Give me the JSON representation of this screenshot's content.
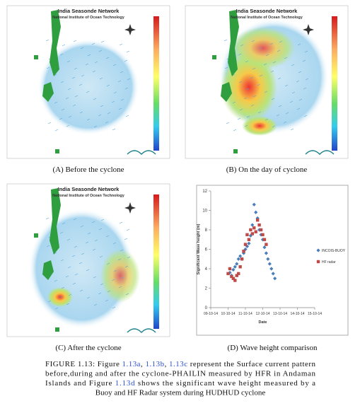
{
  "figure": {
    "panels": [
      {
        "title": "India Seasonde Network",
        "subtitle": "National Institute of Ocean Technology",
        "caption": "(A) Before the cyclone"
      },
      {
        "title": "India Seasonde Network",
        "subtitle": "National Institute of Ocean Technology",
        "caption": "(B) On the day of cyclone"
      },
      {
        "title": "India Seasonde Network",
        "subtitle": "National Institute of Ocean Technology",
        "caption": "(C) After the cyclone"
      }
    ],
    "chart_panel": {
      "caption": "(D) Wave height comparison",
      "chart_data": {
        "type": "scatter",
        "ylabel": "Significant Wave height (m)",
        "xlabel": "Date",
        "xlim": [
          0,
          6
        ],
        "ylim": [
          0,
          12
        ],
        "xticks": [
          {
            "value": 0,
            "label": "09-10-14"
          },
          {
            "value": 1,
            "label": "10-10-14"
          },
          {
            "value": 2,
            "label": "11-10-14"
          },
          {
            "value": 3,
            "label": "12-10-14"
          },
          {
            "value": 4,
            "label": "13-10-14"
          },
          {
            "value": 5,
            "label": "14-10-14"
          },
          {
            "value": 6,
            "label": "15-10-14"
          }
        ],
        "yticks": [
          0,
          2,
          4,
          6,
          8,
          10,
          12
        ],
        "series": [
          {
            "name": "INCOIS-BUOY",
            "color": "#4a7ebb",
            "marker": "diamond",
            "x": [
              1.1,
              1.2,
              1.3,
              1.4,
              1.5,
              1.6,
              1.7,
              1.8,
              1.9,
              2.0,
              2.1,
              2.2,
              2.3,
              2.4,
              2.5,
              2.6,
              2.7,
              2.8,
              2.9,
              3.0,
              3.1,
              3.2,
              3.3,
              3.4,
              3.5,
              3.6,
              3.7
            ],
            "values": [
              3.6,
              3.3,
              3.9,
              4.2,
              4.5,
              5.0,
              5.3,
              5.0,
              5.6,
              6.0,
              6.3,
              6.6,
              7.4,
              8.5,
              10.6,
              9.8,
              9.2,
              8.0,
              7.5,
              7.0,
              6.2,
              5.6,
              5.0,
              4.5,
              4.0,
              3.5,
              3.0
            ]
          },
          {
            "name": "HF radar",
            "color": "#be4b48",
            "marker": "square",
            "x": [
              1.0,
              1.1,
              1.2,
              1.3,
              1.4,
              1.5,
              1.6,
              1.7,
              1.8,
              1.9,
              2.0,
              2.1,
              2.2,
              2.3,
              2.4,
              2.5,
              2.6,
              2.7,
              2.8,
              2.9,
              3.0,
              3.1,
              3.2
            ],
            "values": [
              3.5,
              4.0,
              3.2,
              3.0,
              2.8,
              3.3,
              3.5,
              4.2,
              5.0,
              5.8,
              6.5,
              7.5,
              7.0,
              8.0,
              7.6,
              8.2,
              7.8,
              9.0,
              8.5,
              8.0,
              7.5,
              7.0,
              6.5
            ]
          }
        ]
      }
    },
    "caption": {
      "lines": [
        [
          {
            "text": "FIGURE 1.13: Figure "
          },
          {
            "text": "1.13a",
            "ref": true
          },
          {
            "text": ", "
          },
          {
            "text": "1.13b",
            "ref": true
          },
          {
            "text": ", "
          },
          {
            "text": "1.13c",
            "ref": true
          },
          {
            "text": " represent the Surface current pattern"
          }
        ],
        [
          {
            "text": "before,during and after the cyclone-PHAILIN measured by HFR in Andaman"
          }
        ],
        [
          {
            "text": "Islands and Figure "
          },
          {
            "text": "1.13d",
            "ref": true
          },
          {
            "text": " shows the significant wave height measured by a"
          }
        ],
        [
          {
            "text": "Buoy and HF Radar system during HUDHUD cyclone"
          }
        ]
      ]
    }
  }
}
